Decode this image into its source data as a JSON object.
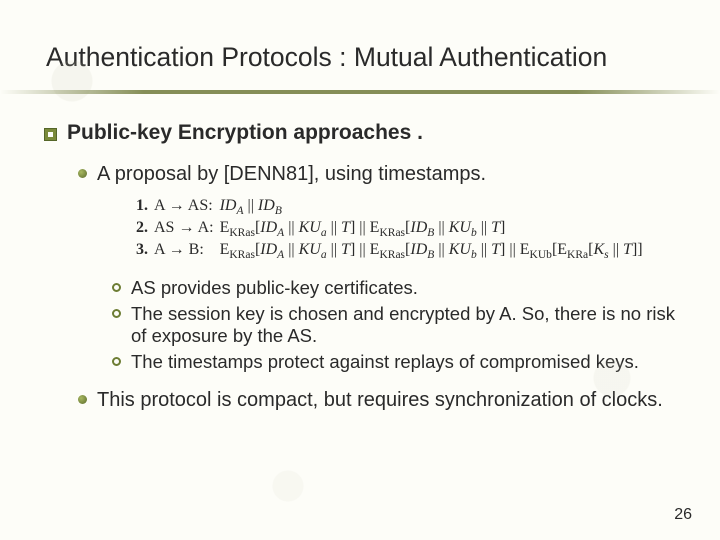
{
  "title": "Authentication Protocols : Mutual Authentication",
  "section": "Public-key Encryption approaches .",
  "proposal_intro": "A proposal by [DENN81], using timestamps.",
  "steps": {
    "rows": [
      {
        "n": "1.",
        "who": "A → AS:",
        "msg_html": "<span class='it'>ID<span class='sub'>A</span></span> || <span class='it'>ID<span class='sub'>B</span></span>"
      },
      {
        "n": "2.",
        "who": "AS → A:",
        "msg_html": "E<span class='subn'>KRas</span>[<span class='it'>ID<span class='sub'>A</span></span> || <span class='it'>KU<span class='sub'>a</span></span> || <span class='it'>T</span>] || E<span class='subn'>KRas</span>[<span class='it'>ID<span class='sub'>B</span></span> || <span class='it'>KU<span class='sub'>b</span></span> || <span class='it'>T</span>]"
      },
      {
        "n": "3.",
        "who": "A → B:",
        "msg_html": "E<span class='subn'>KRas</span>[<span class='it'>ID<span class='sub'>A</span></span> || <span class='it'>KU<span class='sub'>a</span></span> || <span class='it'>T</span>] || E<span class='subn'>KRas</span>[<span class='it'>ID<span class='sub'>B</span></span> || <span class='it'>KU<span class='sub'>b</span></span> || <span class='it'>T</span>] || E<span class='subn'>KUb</span>[E<span class='subn'>KRa</span>[<span class='it'>K<span class='sub'>s</span></span> || <span class='it'>T</span>]]"
      }
    ]
  },
  "sub_bullets": [
    "AS provides public-key certificates.",
    "The session key is chosen and encrypted by A. So, there is no risk of exposure by the AS.",
    "The timestamps protect against replays of compromised keys."
  ],
  "closing": "This protocol is compact, but requires synchronization of clocks.",
  "page_number": "26",
  "colors": {
    "background": "#fdfdf8",
    "text": "#2a2a2a",
    "accent": "#7a8a3a",
    "underline": "#788246"
  }
}
